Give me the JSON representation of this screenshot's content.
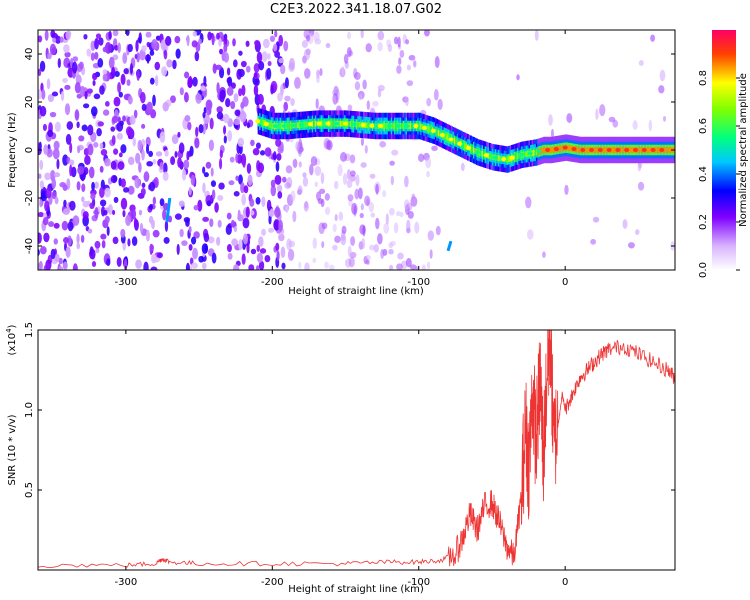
{
  "title": "C2E3.2022.341.18.07.G02",
  "chart_data": [
    {
      "type": "heatmap",
      "xlabel": "Height of straight line (km)",
      "ylabel": "Frequency (Hz)",
      "xlim": [
        -360,
        75
      ],
      "ylim": [
        -50,
        50
      ],
      "xticks": [
        -300,
        -200,
        -100,
        0
      ],
      "xtick_labels": [
        "-300",
        "-200",
        "-100",
        "0"
      ],
      "yticks": [
        -40,
        -20,
        0,
        20,
        40
      ],
      "ytick_labels": [
        "-40",
        "-20",
        "0",
        "20",
        "40"
      ],
      "colorbar": {
        "label": "Normalized spectral amplitude",
        "range": [
          0,
          1
        ],
        "ticks": [
          0,
          0.2,
          0.4,
          0.6,
          0.8
        ],
        "tick_labels": [
          "0.0",
          "0.2",
          "0.4",
          "0.6",
          "0.8"
        ],
        "colormap": [
          "#ffffff",
          "#8000ff",
          "#0000ff",
          "#00ffff",
          "#00ff00",
          "#ffff00",
          "#ff0000",
          "#ff00ff"
        ]
      },
      "ridge": {
        "x": [
          -210,
          -200,
          -190,
          -170,
          -150,
          -130,
          -110,
          -100,
          -90,
          -80,
          -70,
          -60,
          -50,
          -40,
          -30,
          -20,
          -15,
          -10,
          0,
          10,
          20,
          40,
          60,
          75
        ],
        "y": [
          12,
          10,
          10,
          11,
          11,
          10,
          10,
          10,
          8,
          5,
          2,
          -1,
          -3,
          -4,
          -2,
          -1,
          0,
          0,
          1,
          0,
          0,
          0,
          0,
          0
        ]
      },
      "features": [
        {
          "x": [
            -272,
            -270
          ],
          "y": [
            -30,
            -20
          ]
        },
        {
          "x": [
            -80,
            -78
          ],
          "y": [
            -42,
            -38
          ]
        }
      ]
    },
    {
      "type": "line",
      "xlabel": "Height of straight line (km)",
      "ylabel": "SNR (10 * v/v)",
      "y_multiplier_label": "(x10",
      "y_multiplier_exp": "4",
      "y_multiplier_close": ")",
      "xlim": [
        -360,
        75
      ],
      "ylim": [
        0,
        1.5
      ],
      "xticks": [
        -300,
        -200,
        -100,
        0
      ],
      "xtick_labels": [
        "-300",
        "-200",
        "-100",
        "0"
      ],
      "yticks": [
        0.5,
        1.0,
        1.5
      ],
      "ytick_labels": [
        "0.5",
        "1.0",
        "1.5"
      ],
      "series": [
        {
          "color": "#ee3333",
          "x": [
            -360,
            -300,
            -280,
            -275,
            -270,
            -250,
            -200,
            -150,
            -120,
            -100,
            -85,
            -75,
            -70,
            -65,
            -60,
            -55,
            -50,
            -45,
            -40,
            -35,
            -30,
            -27,
            -25,
            -22,
            -20,
            -17,
            -15,
            -12,
            -10,
            -8,
            -5,
            -2,
            0,
            5,
            10,
            15,
            20,
            25,
            30,
            40,
            50,
            60,
            70,
            75
          ],
          "y": [
            0.03,
            0.03,
            0.04,
            0.07,
            0.05,
            0.04,
            0.04,
            0.04,
            0.05,
            0.05,
            0.06,
            0.1,
            0.2,
            0.35,
            0.25,
            0.4,
            0.42,
            0.3,
            0.15,
            0.08,
            0.45,
            0.9,
            0.65,
            1.1,
            0.8,
            1.2,
            0.7,
            1.3,
            1.45,
            0.8,
            0.9,
            1.1,
            1.0,
            1.1,
            1.2,
            1.25,
            1.3,
            1.35,
            1.38,
            1.4,
            1.35,
            1.3,
            1.25,
            1.2
          ]
        }
      ]
    }
  ]
}
